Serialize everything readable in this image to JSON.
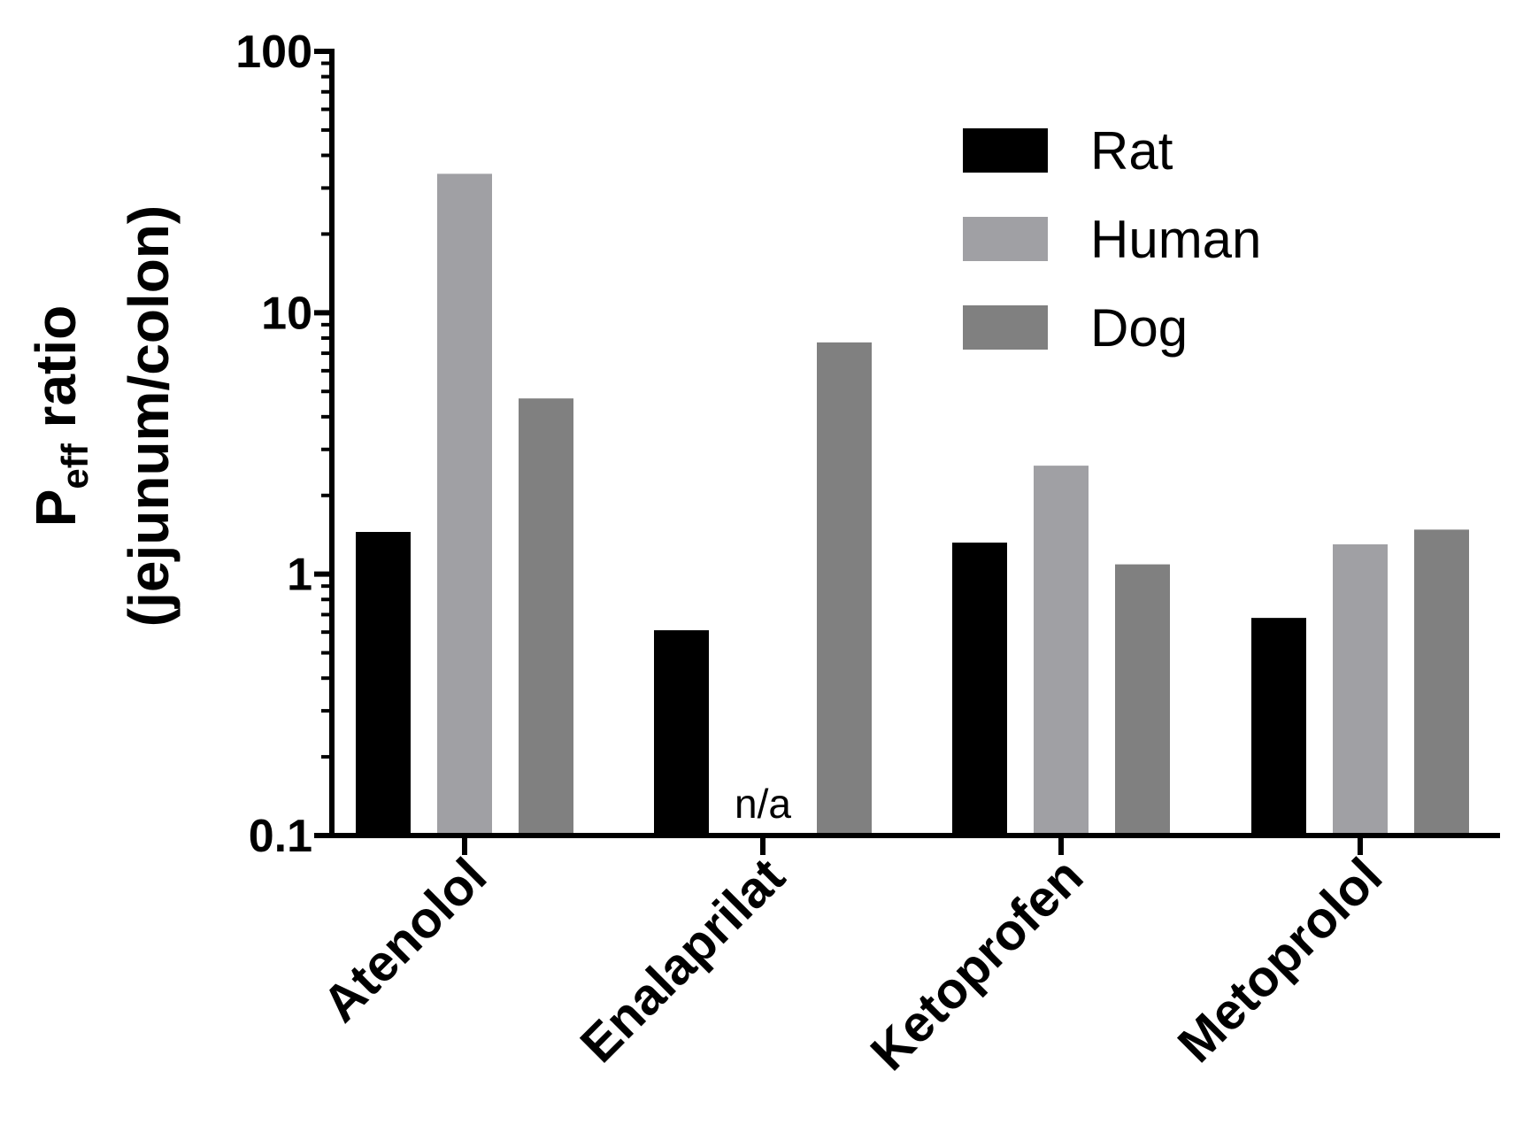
{
  "chart_data": {
    "type": "bar",
    "title": "",
    "ylabel_main": "P",
    "ylabel_sub": "eff",
    "ylabel_rest": " ratio",
    "ylabel_line2": "(jejunum/colon)",
    "xlabel": "",
    "yscale": "log",
    "ylim": [
      0.1,
      100
    ],
    "yticks": [
      0.1,
      1,
      10,
      100
    ],
    "ytick_labels": [
      "0.1",
      "1",
      "10",
      "100"
    ],
    "categories": [
      "Atenolol",
      "Enalaprilat",
      "Ketoprofen",
      "Metoprolol"
    ],
    "series": [
      {
        "name": "Rat",
        "color": "#000000",
        "values": [
          1.45,
          0.61,
          1.32,
          0.68
        ]
      },
      {
        "name": "Human",
        "color": "#a0a0a4",
        "values": [
          34,
          null,
          2.6,
          1.3
        ]
      },
      {
        "name": "Dog",
        "color": "#808080",
        "values": [
          4.7,
          7.7,
          1.09,
          1.48
        ]
      }
    ],
    "annotations": [
      {
        "category": "Enalaprilat",
        "series": "Human",
        "text": "n/a"
      }
    ],
    "legend_position": "top-right",
    "grid": false
  }
}
